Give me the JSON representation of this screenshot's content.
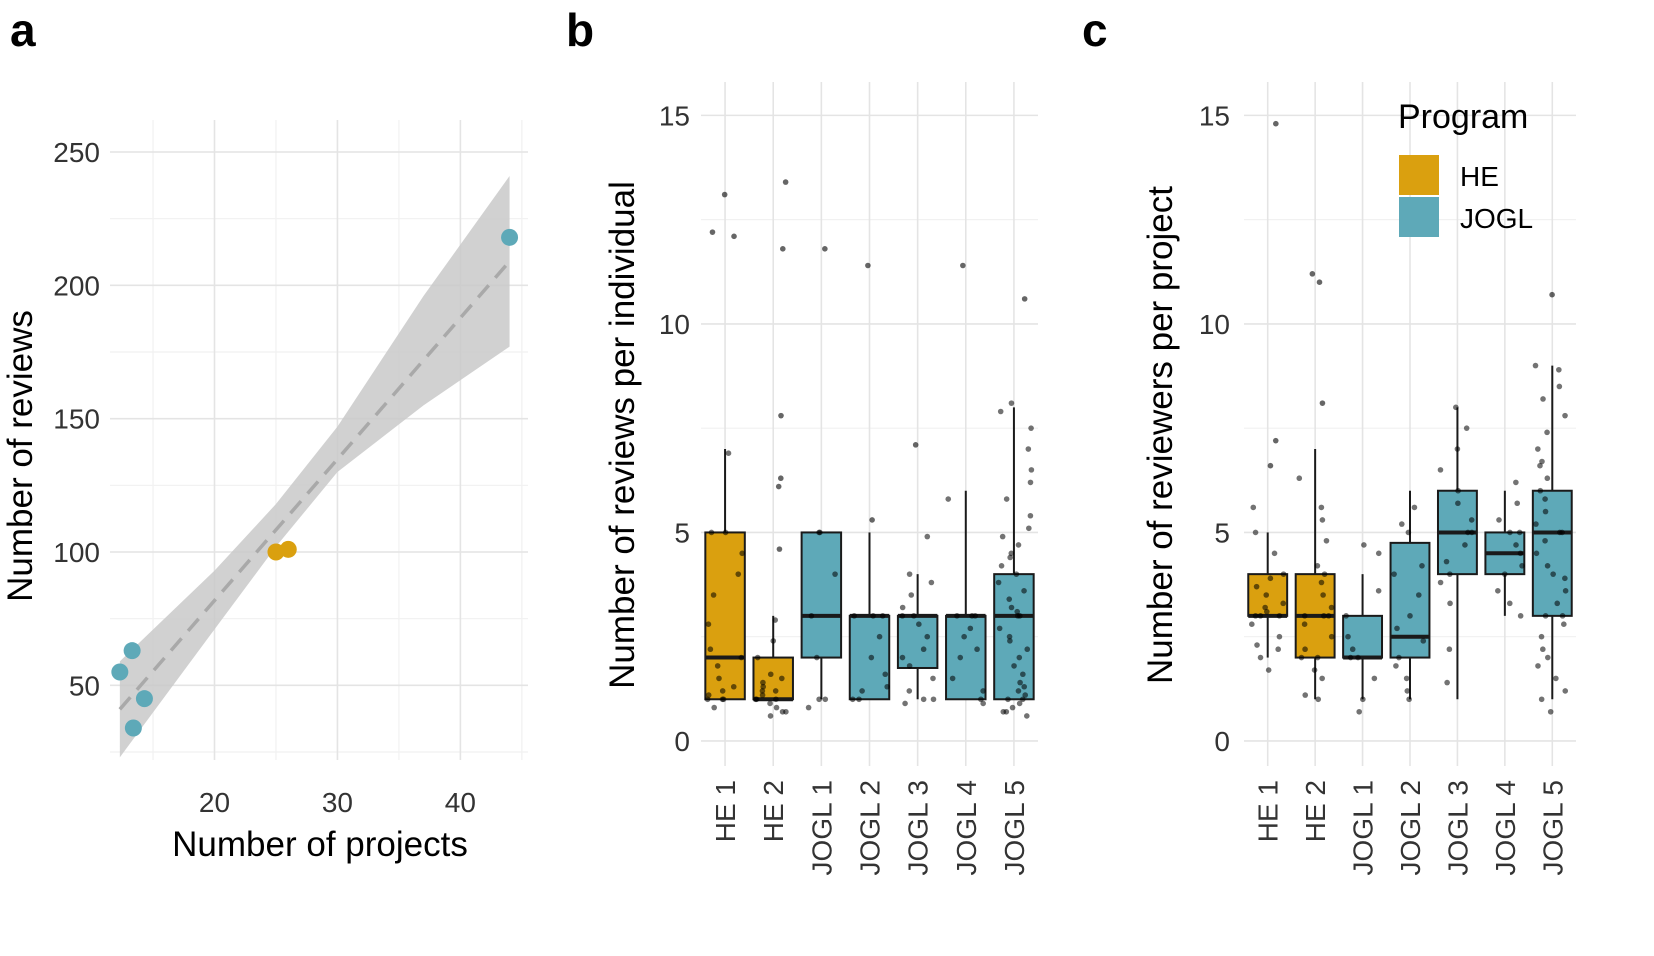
{
  "colors": {
    "HE": "#DAA00F",
    "JOGL": "#5EA9B8",
    "ribbon": "#C9C9C9",
    "fit": "#A9A9A9"
  },
  "legend": {
    "title": "Program",
    "items": [
      {
        "label": "HE",
        "color": "#DAA00F"
      },
      {
        "label": "JOGL",
        "color": "#5EA9B8"
      }
    ],
    "placement": "top-right"
  },
  "chart_data": [
    {
      "panel": "a",
      "type": "scatter",
      "xlabel": "Number of projects",
      "ylabel": "Number of reviews",
      "xlim": [
        11.5,
        45.5
      ],
      "ylim": [
        22,
        262
      ],
      "xticks": [
        "20",
        "30",
        "40"
      ],
      "yticks": [
        "50",
        "100",
        "150",
        "200",
        "250"
      ],
      "grid": true,
      "points": [
        {
          "x": 12.3,
          "y": 55,
          "program": "JOGL"
        },
        {
          "x": 13.3,
          "y": 63,
          "program": "JOGL"
        },
        {
          "x": 13.4,
          "y": 34,
          "program": "JOGL"
        },
        {
          "x": 14.3,
          "y": 45,
          "program": "JOGL"
        },
        {
          "x": 25,
          "y": 100,
          "program": "HE"
        },
        {
          "x": 26,
          "y": 101,
          "program": "HE"
        },
        {
          "x": 44,
          "y": 218,
          "program": "JOGL"
        }
      ],
      "fit": {
        "method": "linear",
        "from": [
          12.3,
          41
        ],
        "to": [
          44,
          209
        ],
        "line": "dashed"
      },
      "ribbon": [
        {
          "x": 12.3,
          "lo": 23,
          "hi": 59
        },
        {
          "x": 20,
          "lo": 71,
          "hi": 93
        },
        {
          "x": 25,
          "lo": 102,
          "hi": 118
        },
        {
          "x": 30,
          "lo": 130,
          "hi": 147
        },
        {
          "x": 37,
          "lo": 155,
          "hi": 196
        },
        {
          "x": 44,
          "lo": 177,
          "hi": 241
        }
      ]
    },
    {
      "panel": "b",
      "type": "box",
      "ylabel": "Number of reviews per individual",
      "xlabel": "",
      "ylim": [
        -0.6,
        15.8
      ],
      "yticks": [
        "0",
        "5",
        "10",
        "15"
      ],
      "grid": true,
      "categories": [
        "HE 1",
        "HE 2",
        "JOGL 1",
        "JOGL 2",
        "JOGL 3",
        "JOGL 4",
        "JOGL 5"
      ],
      "series": [
        {
          "name": "HE 1",
          "program": "HE",
          "whisker_low": 1,
          "q1": 1,
          "median": 2,
          "q3": 5,
          "whisker_high": 7,
          "outliers": [
            12.1,
            12.2,
            13.1
          ],
          "jitter": [
            1,
            1,
            1,
            1.1,
            1.3,
            1.5,
            2,
            2.2,
            2.8,
            3.5,
            4,
            4.5,
            5,
            5,
            6.9,
            0.8,
            1.2,
            1.8
          ]
        },
        {
          "name": "HE 2",
          "program": "HE",
          "whisker_low": 1,
          "q1": 1,
          "median": 1,
          "q3": 2,
          "whisker_high": 3,
          "outliers": [
            4.6,
            6.1,
            6.3,
            7.8,
            11.8,
            13.4
          ],
          "jitter": [
            0.6,
            0.7,
            0.8,
            0.9,
            1,
            1,
            1.1,
            1.2,
            1.3,
            1.4,
            1.5,
            1.2,
            0.7,
            2,
            2.4,
            2.9,
            1,
            1.6
          ]
        },
        {
          "name": "JOGL 1",
          "program": "JOGL",
          "whisker_low": 1,
          "q1": 2,
          "median": 3,
          "q3": 5,
          "whisker_high": 5,
          "outliers": [
            11.8
          ],
          "jitter": [
            0.8,
            1,
            2,
            3,
            4,
            5,
            5,
            1
          ]
        },
        {
          "name": "JOGL 2",
          "program": "JOGL",
          "whisker_low": 1,
          "q1": 1,
          "median": 3,
          "q3": 3,
          "whisker_high": 5,
          "outliers": [
            5.3,
            11.4
          ],
          "jitter": [
            1,
            1,
            1.2,
            1.6,
            2,
            3,
            3,
            3,
            2.5,
            1.3
          ]
        },
        {
          "name": "JOGL 3",
          "program": "JOGL",
          "whisker_low": 1,
          "q1": 1.75,
          "median": 3,
          "q3": 3,
          "whisker_high": 4,
          "outliers": [
            7.1
          ],
          "jitter": [
            0.9,
            1,
            1.2,
            1.5,
            2,
            2.2,
            2.5,
            3,
            3,
            3.2,
            3.5,
            3.8,
            4,
            1.8,
            2.8,
            4.9,
            1
          ]
        },
        {
          "name": "JOGL 4",
          "program": "JOGL",
          "whisker_low": 1,
          "q1": 1,
          "median": 3,
          "q3": 3,
          "whisker_high": 6,
          "outliers": [
            11.4
          ],
          "jitter": [
            0.9,
            1,
            1.2,
            2,
            2.5,
            2.7,
            3,
            3,
            3,
            1.5,
            5.8,
            2.2
          ]
        },
        {
          "name": "JOGL 5",
          "program": "JOGL",
          "whisker_low": 1,
          "q1": 1,
          "median": 3,
          "q3": 4,
          "whisker_high": 8,
          "outliers": [
            10.6
          ],
          "jitter": [
            0.6,
            0.7,
            0.8,
            0.9,
            1,
            1,
            1.1,
            1.2,
            1.4,
            1.6,
            1.8,
            2,
            2.2,
            2.5,
            2.7,
            3,
            3,
            3.2,
            3.4,
            3.6,
            3.8,
            4,
            4.2,
            4.5,
            4.7,
            4.9,
            5.1,
            5.4,
            5.8,
            6.2,
            6.5,
            7,
            7.5,
            7.9,
            8.1,
            2.4,
            1.3,
            0.7,
            3.1,
            4.4
          ]
        }
      ]
    },
    {
      "panel": "c",
      "type": "box",
      "ylabel": "Number of reviewers per project",
      "xlabel": "",
      "ylim": [
        -0.6,
        15.8
      ],
      "yticks": [
        "0",
        "5",
        "10",
        "15"
      ],
      "grid": true,
      "categories": [
        "HE 1",
        "HE 2",
        "JOGL 1",
        "JOGL 2",
        "JOGL 3",
        "JOGL 4",
        "JOGL 5"
      ],
      "series": [
        {
          "name": "HE 1",
          "program": "HE",
          "whisker_low": 2,
          "q1": 3,
          "median": 3,
          "q3": 4,
          "whisker_high": 5,
          "outliers": [
            6.6,
            7.2,
            14.8
          ],
          "jitter": [
            1.7,
            2,
            2.2,
            2.5,
            2.8,
            3,
            3,
            3,
            3.1,
            3.3,
            3.5,
            3.7,
            3.9,
            4,
            4.5,
            5,
            2.3,
            3.2,
            5.6
          ]
        },
        {
          "name": "HE 2",
          "program": "HE",
          "whisker_low": 1,
          "q1": 2,
          "median": 3,
          "q3": 4,
          "whisker_high": 7,
          "outliers": [
            8.1,
            11,
            11.2
          ],
          "jitter": [
            1,
            1.1,
            1.5,
            2,
            2,
            2.2,
            2.5,
            3,
            3,
            3,
            3.2,
            3.5,
            3.8,
            4,
            4.2,
            4.8,
            5.3,
            5.6,
            6.3,
            2.8,
            1.7
          ]
        },
        {
          "name": "JOGL 1",
          "program": "JOGL",
          "whisker_low": 1,
          "q1": 2,
          "median": 2,
          "q3": 3,
          "whisker_high": 4,
          "outliers": [],
          "jitter": [
            0.7,
            1,
            1.5,
            2,
            2,
            2.2,
            2.5,
            3,
            3.6,
            4.5,
            4.7
          ]
        },
        {
          "name": "JOGL 2",
          "program": "JOGL",
          "whisker_low": 1,
          "q1": 2,
          "median": 2.5,
          "q3": 4.75,
          "whisker_high": 6,
          "outliers": [],
          "jitter": [
            1,
            1.2,
            1.8,
            2,
            2.4,
            2.7,
            3,
            3.5,
            4,
            4.2,
            5,
            5.2,
            5.6,
            1.5
          ]
        },
        {
          "name": "JOGL 3",
          "program": "JOGL",
          "whisker_low": 1,
          "q1": 4,
          "median": 5,
          "q3": 6,
          "whisker_high": 8,
          "outliers": [],
          "jitter": [
            1.4,
            2.2,
            3.8,
            4,
            4.3,
            4.7,
            5,
            5,
            5.3,
            5.7,
            6,
            6.5,
            7,
            7.5,
            8,
            3.3
          ]
        },
        {
          "name": "JOGL 4",
          "program": "JOGL",
          "whisker_low": 3,
          "q1": 4,
          "median": 4.5,
          "q3": 5,
          "whisker_high": 6,
          "outliers": [],
          "jitter": [
            3,
            3.3,
            3.6,
            4,
            4.2,
            4.5,
            4.7,
            5,
            5,
            5.3,
            5.7,
            6.2
          ]
        },
        {
          "name": "JOGL 5",
          "program": "JOGL",
          "whisker_low": 1,
          "q1": 3,
          "median": 5,
          "q3": 6,
          "whisker_high": 9,
          "outliers": [
            10.7
          ],
          "jitter": [
            0.7,
            1,
            1.2,
            1.5,
            2,
            2.2,
            2.5,
            3,
            3,
            3.3,
            3.6,
            4,
            4.2,
            4.5,
            4.8,
            5,
            5,
            5.2,
            5.5,
            5.8,
            6,
            6.3,
            6.7,
            7,
            7.4,
            7.8,
            8.2,
            8.5,
            8.9,
            9,
            2.8,
            1.8,
            3.9,
            6.6
          ]
        }
      ]
    }
  ]
}
